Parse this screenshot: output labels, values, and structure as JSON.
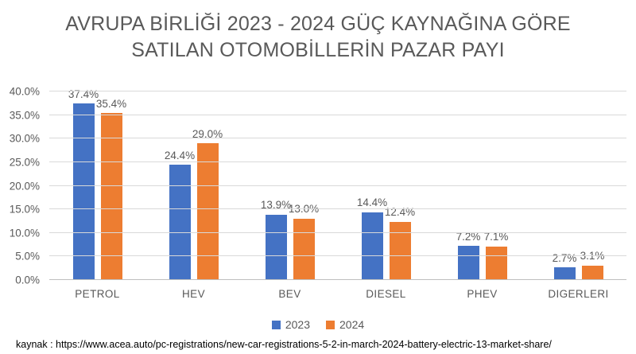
{
  "title": {
    "line1": "AVRUPA BİRLİĞİ 2023 - 2024 GÜÇ KAYNAĞINA GÖRE",
    "line2": "SATILAN OTOMOBİLLERİN PAZAR PAYI"
  },
  "chart_data": {
    "type": "bar",
    "categories": [
      "PETROL",
      "HEV",
      "BEV",
      "DIESEL",
      "PHEV",
      "DIGERLERI"
    ],
    "series": [
      {
        "name": "2023",
        "color": "#4472C4",
        "values": [
          37.4,
          24.4,
          13.9,
          14.4,
          7.2,
          2.7
        ]
      },
      {
        "name": "2024",
        "color": "#ED7D31",
        "values": [
          35.4,
          29.0,
          13.0,
          12.4,
          7.1,
          3.1
        ]
      }
    ],
    "value_label_suffix": "%",
    "value_label_decimals": 1,
    "ylim": [
      0,
      40
    ],
    "ytick_step": 5,
    "ytick_labels": [
      "0.0%",
      "5.0%",
      "10.0%",
      "15.0%",
      "20.0%",
      "25.0%",
      "30.0%",
      "35.0%",
      "40.0%"
    ],
    "grid": true,
    "legend_position": "bottom"
  },
  "source": "kaynak : https://www.acea.auto/pc-registrations/new-car-registrations-5-2-in-march-2024-battery-electric-13-market-share/",
  "colors": {
    "series_2023": "#4472C4",
    "series_2024": "#ED7D31",
    "text_gray": "#595959",
    "gridline": "#D9D9D9",
    "source_text": "#000000",
    "background": "#FFFFFF"
  }
}
